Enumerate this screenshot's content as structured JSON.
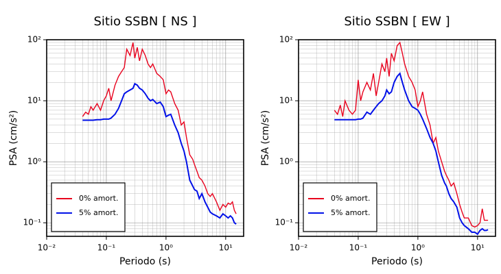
{
  "chart_data": [
    {
      "type": "line",
      "title": "Sitio SSBN [ NS ]",
      "x_label": "Periodo (s)",
      "y_label": "PSA (cm/s²)",
      "log_x": true,
      "log_y": true,
      "grid": true,
      "minor_grid": true,
      "legend": "lower left",
      "xlim": [
        0.01,
        20
      ],
      "ylim": [
        0.06,
        100
      ],
      "xticks": [
        {
          "value": 0.01,
          "label": "10⁻²"
        },
        {
          "value": 0.1,
          "label": "10⁻¹"
        },
        {
          "value": 1,
          "label": "10⁰"
        },
        {
          "value": 10,
          "label": "10¹"
        }
      ],
      "yticks": [
        {
          "value": 0.1,
          "label": "10⁻¹"
        },
        {
          "value": 1,
          "label": "10⁰"
        },
        {
          "value": 10,
          "label": "10¹"
        },
        {
          "value": 100,
          "label": "10²"
        }
      ],
      "x": [
        0.04,
        0.045,
        0.05,
        0.055,
        0.06,
        0.07,
        0.08,
        0.09,
        0.1,
        0.11,
        0.12,
        0.14,
        0.16,
        0.18,
        0.2,
        0.22,
        0.25,
        0.28,
        0.3,
        0.33,
        0.36,
        0.4,
        0.45,
        0.5,
        0.55,
        0.6,
        0.7,
        0.8,
        0.9,
        1.0,
        1.1,
        1.2,
        1.4,
        1.6,
        1.8,
        2,
        2.2,
        2.5,
        2.8,
        3,
        3.3,
        3.6,
        4,
        4.5,
        5,
        5.5,
        6,
        7,
        8,
        9,
        10,
        11,
        12,
        13,
        14,
        15
      ],
      "series": [
        {
          "name": "0% amort.",
          "color": "#e8001c",
          "values": [
            5.5,
            6.5,
            6,
            8,
            7,
            9,
            7,
            10,
            12,
            16,
            10,
            18,
            25,
            30,
            35,
            70,
            55,
            90,
            50,
            75,
            45,
            70,
            55,
            40,
            35,
            40,
            28,
            25,
            22,
            13,
            15,
            14,
            9,
            7,
            4,
            4.5,
            2.5,
            1.3,
            1.1,
            0.9,
            0.7,
            0.55,
            0.5,
            0.4,
            0.3,
            0.27,
            0.3,
            0.22,
            0.16,
            0.2,
            0.18,
            0.21,
            0.2,
            0.22,
            0.16,
            0.14
          ]
        },
        {
          "name": "5% amort.",
          "color": "#0010e8",
          "values": [
            4.8,
            4.8,
            4.8,
            4.8,
            4.8,
            4.9,
            4.9,
            5,
            5,
            5,
            5.2,
            6,
            7.5,
            10,
            13,
            14,
            15,
            16,
            19,
            18,
            16,
            15,
            13,
            11,
            10,
            10.5,
            9,
            9.5,
            8,
            5.5,
            5.8,
            6,
            4,
            3,
            2,
            1.5,
            1,
            0.5,
            0.4,
            0.35,
            0.33,
            0.25,
            0.3,
            0.22,
            0.18,
            0.15,
            0.14,
            0.13,
            0.12,
            0.14,
            0.13,
            0.12,
            0.13,
            0.12,
            0.1,
            0.095
          ]
        }
      ]
    },
    {
      "type": "line",
      "title": "Sitio SSBN [ EW ]",
      "x_label": "Periodo (s)",
      "y_label": "PSA (cm/s²)",
      "log_x": true,
      "log_y": true,
      "grid": true,
      "minor_grid": true,
      "legend": "lower left",
      "xlim": [
        0.01,
        20
      ],
      "ylim": [
        0.06,
        100
      ],
      "xticks": [
        {
          "value": 0.01,
          "label": "10⁻²"
        },
        {
          "value": 0.1,
          "label": "10⁻¹"
        },
        {
          "value": 1,
          "label": "10⁰"
        },
        {
          "value": 10,
          "label": "10¹"
        }
      ],
      "yticks": [
        {
          "value": 0.1,
          "label": "10⁻¹"
        },
        {
          "value": 1,
          "label": "10⁰"
        },
        {
          "value": 10,
          "label": "10¹"
        },
        {
          "value": 100,
          "label": "10²"
        }
      ],
      "x": [
        0.04,
        0.045,
        0.05,
        0.055,
        0.06,
        0.07,
        0.08,
        0.09,
        0.1,
        0.11,
        0.12,
        0.14,
        0.16,
        0.18,
        0.2,
        0.22,
        0.25,
        0.28,
        0.3,
        0.33,
        0.36,
        0.4,
        0.45,
        0.5,
        0.55,
        0.6,
        0.7,
        0.8,
        0.9,
        1.0,
        1.1,
        1.2,
        1.4,
        1.6,
        1.8,
        2,
        2.2,
        2.5,
        2.8,
        3,
        3.3,
        3.6,
        4,
        4.5,
        5,
        5.5,
        6,
        7,
        8,
        9,
        10,
        11,
        12,
        13,
        14,
        15
      ],
      "series": [
        {
          "name": "0% amort.",
          "color": "#e8001c",
          "values": [
            7,
            6,
            8.5,
            5.5,
            10,
            7,
            6,
            7,
            22,
            10,
            14,
            20,
            15,
            28,
            12,
            20,
            40,
            30,
            50,
            25,
            60,
            45,
            80,
            90,
            60,
            40,
            25,
            20,
            15,
            8,
            10,
            14,
            6,
            4,
            2,
            2.5,
            1.5,
            1,
            0.7,
            0.6,
            0.5,
            0.4,
            0.45,
            0.3,
            0.2,
            0.15,
            0.12,
            0.12,
            0.09,
            0.085,
            0.09,
            0.1,
            0.17,
            0.11,
            0.11,
            0.11
          ]
        },
        {
          "name": "5% amort.",
          "color": "#0010e8",
          "values": [
            4.9,
            4.9,
            4.9,
            4.9,
            4.9,
            4.9,
            4.9,
            4.9,
            5,
            5,
            5.2,
            6.5,
            6,
            7,
            8,
            9,
            10,
            12,
            15,
            13,
            14,
            20,
            25,
            28,
            20,
            15,
            10,
            8,
            7.5,
            7,
            6,
            5,
            3.5,
            2.5,
            2,
            1.5,
            1,
            0.6,
            0.45,
            0.4,
            0.3,
            0.25,
            0.22,
            0.18,
            0.12,
            0.1,
            0.09,
            0.08,
            0.07,
            0.07,
            0.065,
            0.075,
            0.08,
            0.075,
            0.075,
            0.077
          ]
        }
      ]
    }
  ]
}
